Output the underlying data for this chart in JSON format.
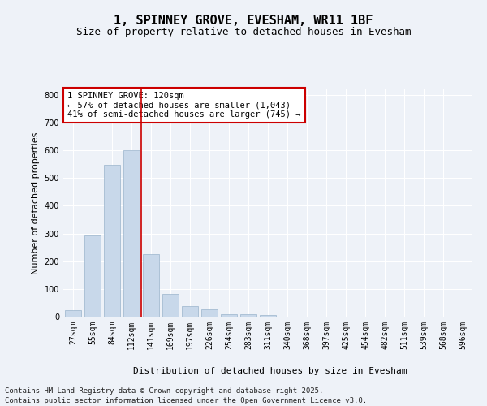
{
  "title1": "1, SPINNEY GROVE, EVESHAM, WR11 1BF",
  "title2": "Size of property relative to detached houses in Evesham",
  "xlabel": "Distribution of detached houses by size in Evesham",
  "ylabel": "Number of detached properties",
  "categories": [
    "27sqm",
    "55sqm",
    "84sqm",
    "112sqm",
    "141sqm",
    "169sqm",
    "197sqm",
    "226sqm",
    "254sqm",
    "283sqm",
    "311sqm",
    "340sqm",
    "368sqm",
    "397sqm",
    "425sqm",
    "454sqm",
    "482sqm",
    "511sqm",
    "539sqm",
    "568sqm",
    "596sqm"
  ],
  "values": [
    22,
    292,
    548,
    601,
    225,
    82,
    38,
    25,
    10,
    8,
    5,
    0,
    0,
    0,
    0,
    0,
    0,
    0,
    0,
    0,
    0
  ],
  "bar_color": "#c8d8ea",
  "bar_edge_color": "#9ab4cc",
  "vline_x_index": 3.5,
  "vline_color": "#cc0000",
  "annotation_text": "1 SPINNEY GROVE: 120sqm\n← 57% of detached houses are smaller (1,043)\n41% of semi-detached houses are larger (745) →",
  "annotation_box_facecolor": "#ffffff",
  "annotation_box_edge": "#cc0000",
  "ylim": [
    0,
    820
  ],
  "yticks": [
    0,
    100,
    200,
    300,
    400,
    500,
    600,
    700,
    800
  ],
  "footer1": "Contains HM Land Registry data © Crown copyright and database right 2025.",
  "footer2": "Contains public sector information licensed under the Open Government Licence v3.0.",
  "bg_color": "#eef2f8",
  "plot_bg_color": "#eef2f8",
  "grid_color": "#ffffff",
  "title1_fontsize": 11,
  "title2_fontsize": 9,
  "axis_label_fontsize": 8,
  "tick_fontsize": 7,
  "annotation_fontsize": 7.5,
  "footer_fontsize": 6.5
}
